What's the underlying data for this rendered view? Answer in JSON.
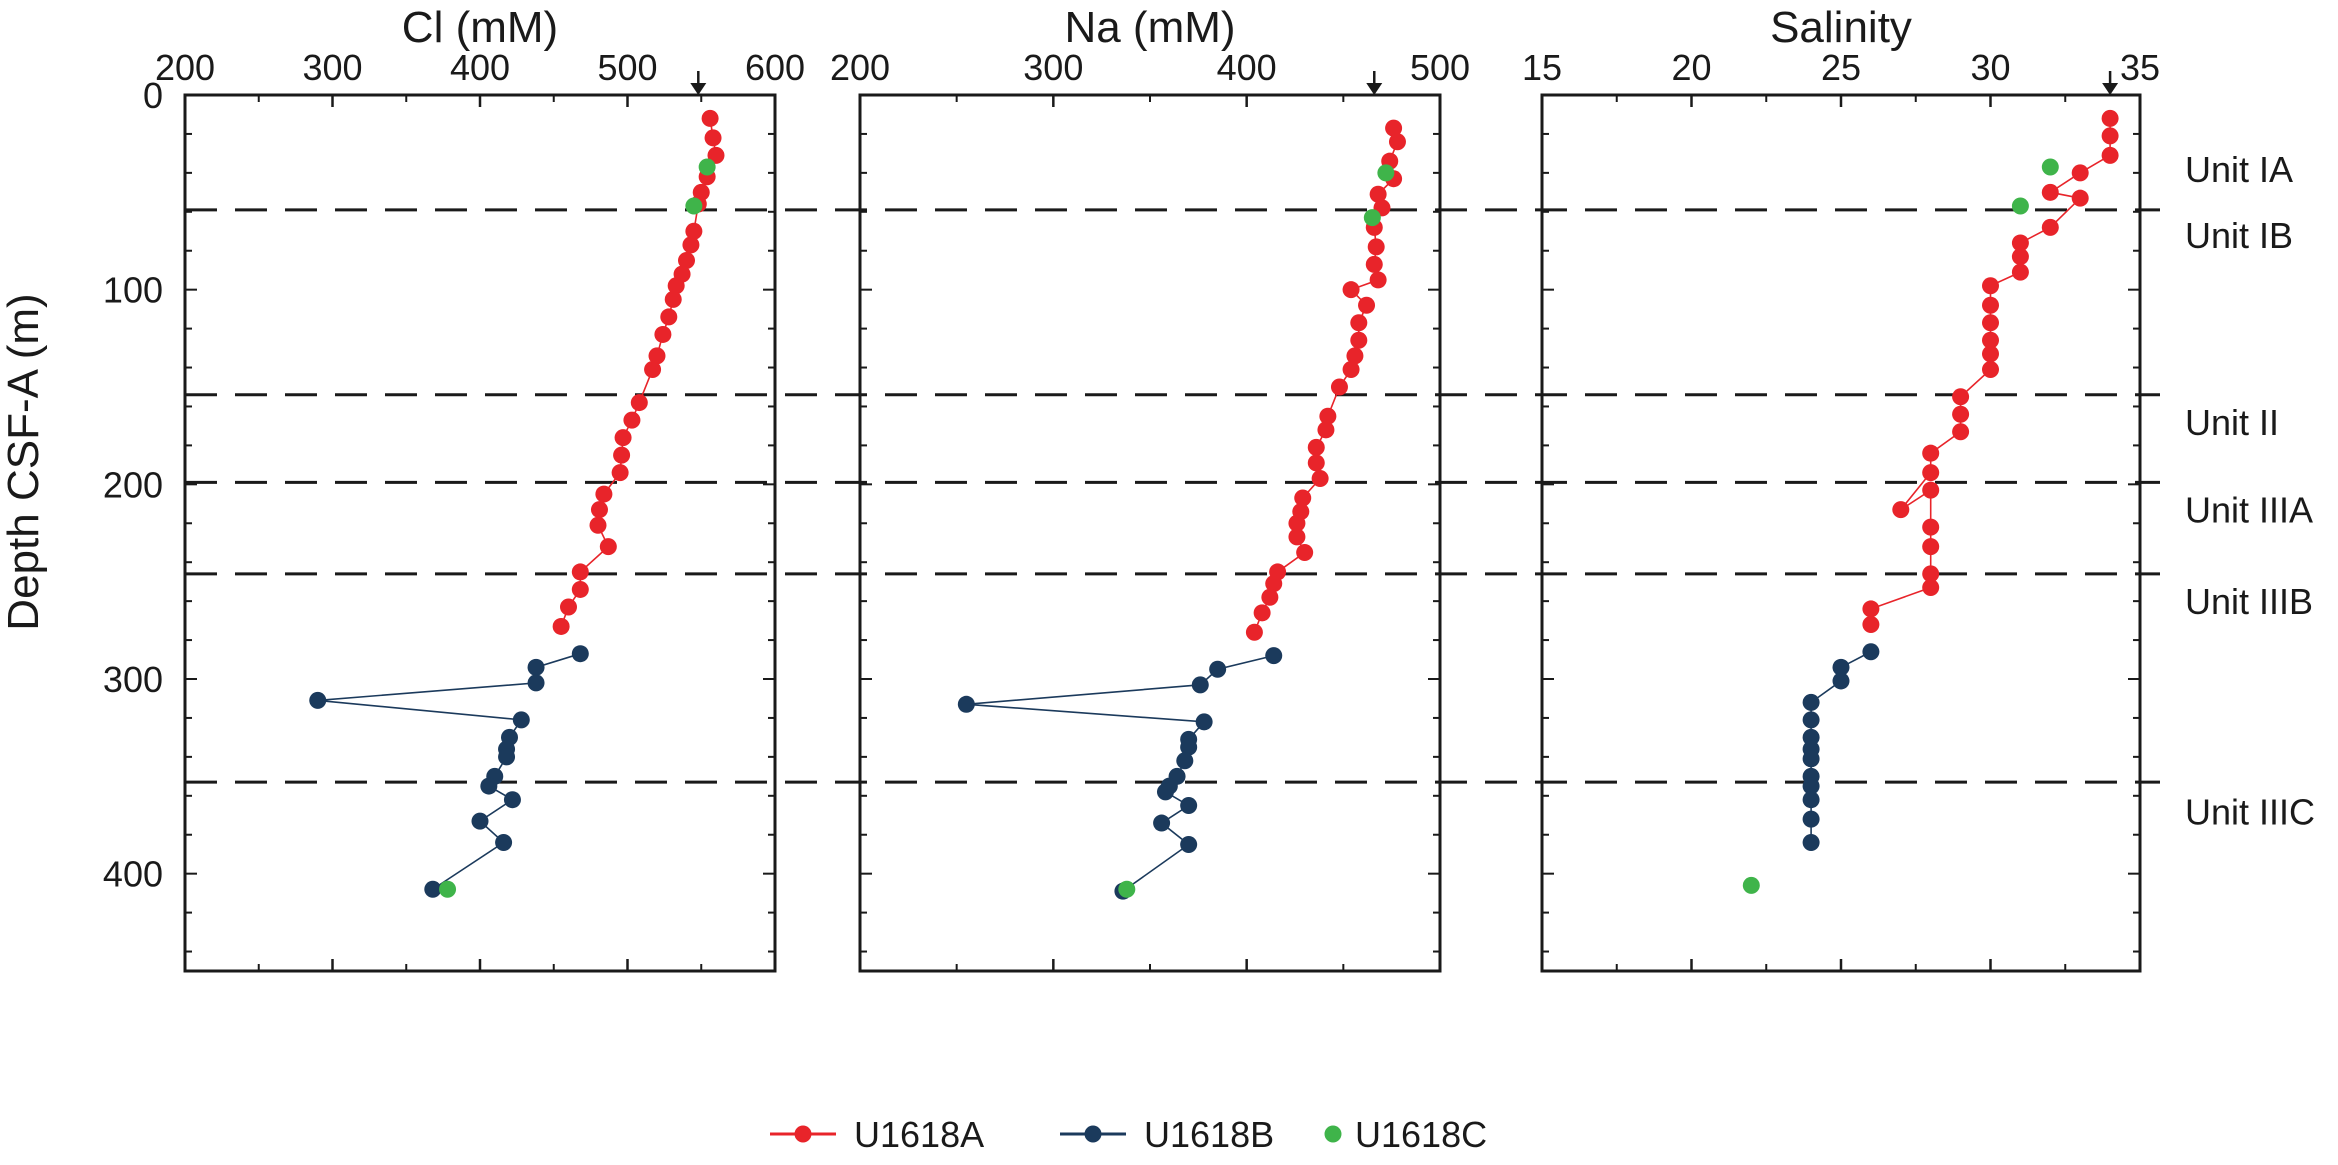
{
  "chart_data": {
    "type": "scatter",
    "ylabel": "Depth CSF-A (m)",
    "ylim": [
      0,
      450
    ],
    "yticks": [
      0,
      100,
      200,
      300,
      400
    ],
    "unit_boundaries": [
      59,
      154,
      199,
      246,
      353
    ],
    "units": [
      {
        "label": "Unit IA",
        "depth": 38
      },
      {
        "label": "Unit IB",
        "depth": 72
      },
      {
        "label": "Unit II",
        "depth": 168
      },
      {
        "label": "Unit IIIA",
        "depth": 213
      },
      {
        "label": "Unit IIIB",
        "depth": 260
      },
      {
        "label": "Unit IIIC",
        "depth": 368
      }
    ],
    "legend": [
      {
        "name": "U1618A",
        "color": "#e8242a",
        "line": true
      },
      {
        "name": "U1618B",
        "color": "#1b3a5c",
        "line": true
      },
      {
        "name": "U1618C",
        "color": "#3fb44a",
        "line": false
      }
    ],
    "panels": [
      {
        "title": "Cl (mM)",
        "xlim": [
          200,
          600
        ],
        "xticks": [
          200,
          300,
          400,
          500,
          600
        ],
        "arrow_value": 548,
        "series": [
          {
            "name": "U1618A",
            "points": [
              [
                556,
                12
              ],
              [
                558,
                22
              ],
              [
                560,
                31
              ],
              [
                554,
                42
              ],
              [
                550,
                50
              ],
              [
                548,
                56
              ],
              [
                545,
                70
              ],
              [
                543,
                77
              ],
              [
                540,
                85
              ],
              [
                537,
                92
              ],
              [
                533,
                98
              ],
              [
                531,
                105
              ],
              [
                528,
                114
              ],
              [
                524,
                123
              ],
              [
                520,
                134
              ],
              [
                517,
                141
              ],
              [
                508,
                158
              ],
              [
                503,
                167
              ],
              [
                497,
                176
              ],
              [
                496,
                185
              ],
              [
                495,
                194
              ],
              [
                484,
                205
              ],
              [
                481,
                213
              ],
              [
                480,
                221
              ],
              [
                487,
                232
              ],
              [
                468,
                245
              ],
              [
                468,
                254
              ],
              [
                460,
                263
              ],
              [
                455,
                273
              ]
            ]
          },
          {
            "name": "U1618B",
            "points": [
              [
                468,
                287
              ],
              [
                438,
                294
              ],
              [
                438,
                302
              ],
              [
                290,
                311
              ],
              [
                428,
                321
              ],
              [
                420,
                330
              ],
              [
                418,
                336
              ],
              [
                418,
                340
              ],
              [
                410,
                350
              ],
              [
                406,
                355
              ],
              [
                422,
                362
              ],
              [
                400,
                373
              ],
              [
                416,
                384
              ],
              [
                368,
                408
              ]
            ]
          },
          {
            "name": "U1618C",
            "points": [
              [
                554,
                37
              ],
              [
                545,
                57
              ],
              [
                378,
                408
              ]
            ]
          }
        ]
      },
      {
        "title": "Na (mM)",
        "xlim": [
          200,
          500
        ],
        "xticks": [
          200,
          300,
          400,
          500
        ],
        "arrow_value": 466,
        "series": [
          {
            "name": "U1618A",
            "points": [
              [
                476,
                17
              ],
              [
                478,
                24
              ],
              [
                474,
                34
              ],
              [
                476,
                43
              ],
              [
                468,
                51
              ],
              [
                470,
                58
              ],
              [
                466,
                68
              ],
              [
                467,
                78
              ],
              [
                466,
                87
              ],
              [
                468,
                95
              ],
              [
                454,
                100
              ],
              [
                462,
                108
              ],
              [
                458,
                117
              ],
              [
                458,
                126
              ],
              [
                456,
                134
              ],
              [
                454,
                141
              ],
              [
                448,
                150
              ],
              [
                442,
                165
              ],
              [
                441,
                172
              ],
              [
                436,
                181
              ],
              [
                436,
                189
              ],
              [
                438,
                197
              ],
              [
                429,
                207
              ],
              [
                428,
                214
              ],
              [
                426,
                220
              ],
              [
                426,
                227
              ],
              [
                430,
                235
              ],
              [
                416,
                245
              ],
              [
                414,
                251
              ],
              [
                412,
                258
              ],
              [
                408,
                266
              ],
              [
                404,
                276
              ]
            ]
          },
          {
            "name": "U1618B",
            "points": [
              [
                414,
                288
              ],
              [
                385,
                295
              ],
              [
                376,
                303
              ],
              [
                255,
                313
              ],
              [
                378,
                322
              ],
              [
                370,
                331
              ],
              [
                370,
                335
              ],
              [
                368,
                342
              ],
              [
                364,
                350
              ],
              [
                360,
                355
              ],
              [
                358,
                358
              ],
              [
                370,
                365
              ],
              [
                356,
                374
              ],
              [
                370,
                385
              ],
              [
                336,
                409
              ]
            ]
          },
          {
            "name": "U1618C",
            "points": [
              [
                472,
                40
              ],
              [
                465,
                63
              ],
              [
                338,
                408
              ]
            ]
          }
        ]
      },
      {
        "title": "Salinity",
        "xlim": [
          15,
          35
        ],
        "xticks": [
          15,
          20,
          25,
          30,
          35
        ],
        "arrow_value": 34,
        "series": [
          {
            "name": "U1618A",
            "points": [
              [
                34,
                12
              ],
              [
                34,
                21
              ],
              [
                34,
                31
              ],
              [
                33,
                40
              ],
              [
                32,
                50
              ],
              [
                33,
                53
              ],
              [
                32,
                68
              ],
              [
                31,
                76
              ],
              [
                31,
                83
              ],
              [
                31,
                91
              ],
              [
                30,
                98
              ],
              [
                30,
                108
              ],
              [
                30,
                117
              ],
              [
                30,
                126
              ],
              [
                30,
                133
              ],
              [
                30,
                141
              ],
              [
                29,
                155
              ],
              [
                29,
                164
              ],
              [
                29,
                173
              ],
              [
                28,
                184
              ],
              [
                28,
                194
              ],
              [
                27,
                213
              ],
              [
                28,
                203
              ],
              [
                28,
                222
              ],
              [
                28,
                232
              ],
              [
                28,
                246
              ],
              [
                28,
                253
              ],
              [
                26,
                264
              ],
              [
                26,
                272
              ]
            ]
          },
          {
            "name": "U1618B",
            "points": [
              [
                26,
                286
              ],
              [
                25,
                294
              ],
              [
                25,
                301
              ],
              [
                24,
                312
              ],
              [
                24,
                321
              ],
              [
                24,
                330
              ],
              [
                24,
                336
              ],
              [
                24,
                341
              ],
              [
                24,
                350
              ],
              [
                24,
                355
              ],
              [
                24,
                362
              ],
              [
                24,
                372
              ],
              [
                24,
                384
              ]
            ]
          },
          {
            "name": "U1618C",
            "points": [
              [
                32,
                37
              ],
              [
                31,
                57
              ],
              [
                22,
                406
              ]
            ]
          }
        ]
      }
    ]
  }
}
